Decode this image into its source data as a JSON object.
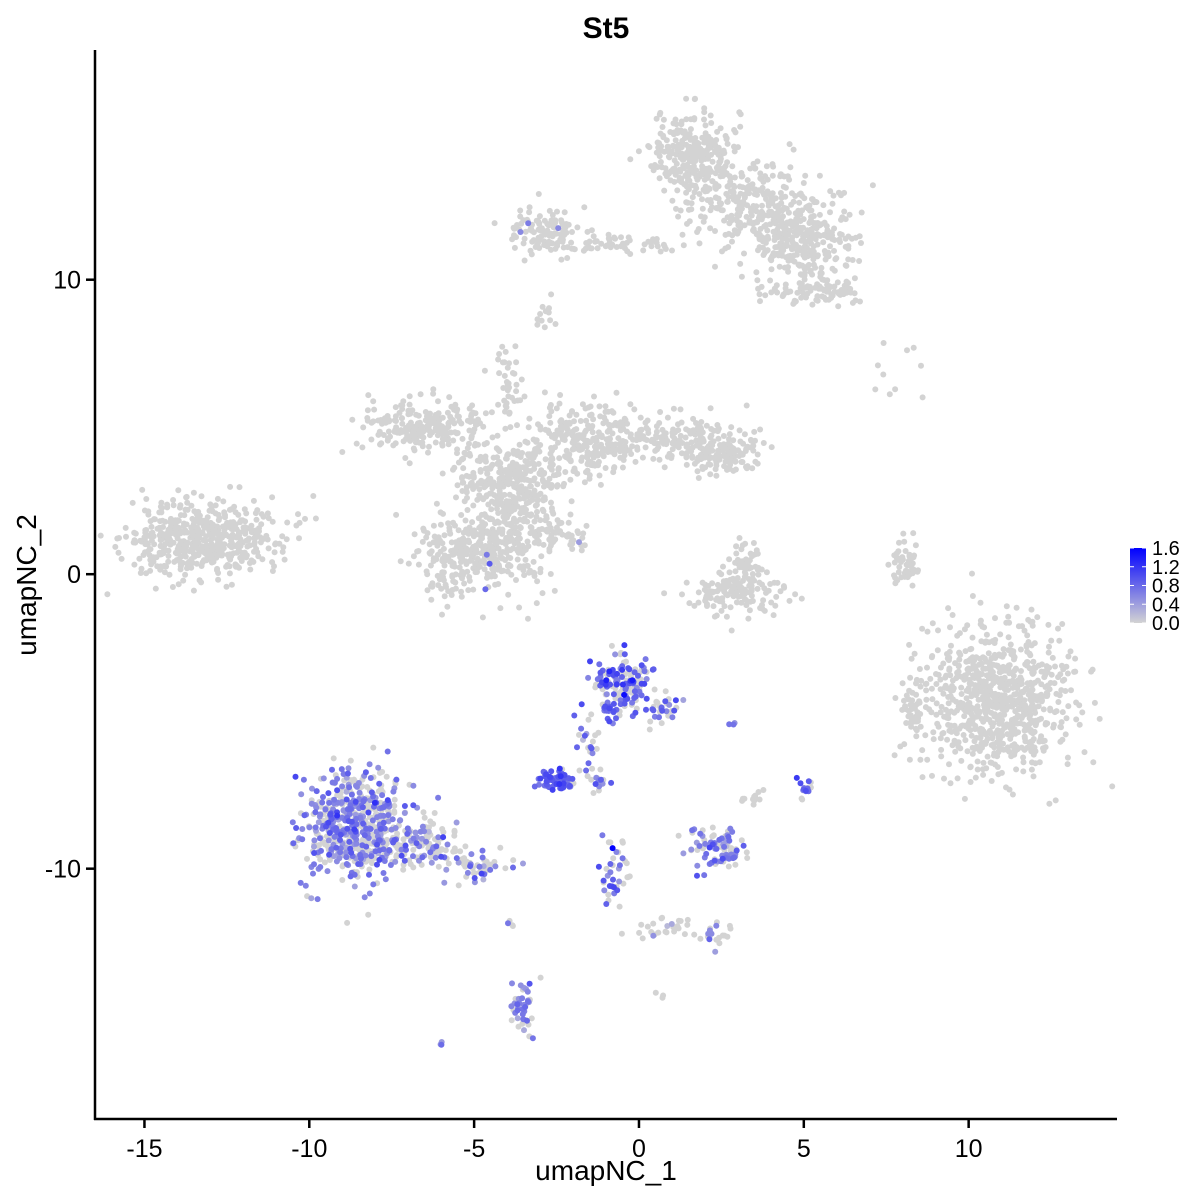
{
  "chart_data": {
    "type": "scatter",
    "title": "St5",
    "xlabel": "umapNC_1",
    "ylabel": "umapNC_2",
    "xlim": [
      -16.5,
      14.5
    ],
    "ylim": [
      -18.5,
      17.8
    ],
    "x_ticks": [
      -15,
      -10,
      -5,
      0,
      5,
      10
    ],
    "x_tick_labels": [
      "-15",
      "-10",
      "-5",
      "0",
      "5",
      "10"
    ],
    "y_ticks": [
      -10,
      0,
      10
    ],
    "y_tick_labels": [
      "-10",
      "0",
      "10"
    ],
    "grid": false,
    "legend": {
      "placement": "right",
      "title": "",
      "min": 0.0,
      "max": 1.6,
      "ticks": [
        0.0,
        0.4,
        0.8,
        1.2,
        1.6
      ],
      "tick_labels": [
        "0.0",
        "0.4",
        "0.8",
        "1.2",
        "1.6"
      ]
    },
    "colors": {
      "low": "#d3d3d3",
      "high": "#0000ff"
    },
    "clusters": [
      {
        "cx": 1.7,
        "cy": 14.2,
        "sx": 0.8,
        "sy": 0.9,
        "n": 300,
        "expr": 0,
        "frac": 0
      },
      {
        "cx": 3.5,
        "cy": 12.5,
        "sx": 1.3,
        "sy": 0.9,
        "n": 260,
        "expr": 0,
        "frac": 0
      },
      {
        "cx": 5.0,
        "cy": 11.3,
        "sx": 1.0,
        "sy": 0.8,
        "n": 260,
        "expr": 0,
        "frac": 0
      },
      {
        "cx": 5.3,
        "cy": 9.6,
        "sx": 0.9,
        "sy": 0.3,
        "n": 90,
        "expr": 0,
        "frac": 0
      },
      {
        "cx": -2.9,
        "cy": 11.6,
        "sx": 0.7,
        "sy": 0.5,
        "n": 110,
        "expr": 0.7,
        "frac": 0.04
      },
      {
        "cx": -0.5,
        "cy": 11.2,
        "sx": 1.3,
        "sy": 0.2,
        "n": 60,
        "expr": 0,
        "frac": 0
      },
      {
        "cx": -2.8,
        "cy": 8.8,
        "sx": 0.2,
        "sy": 0.5,
        "n": 12,
        "expr": 0,
        "frac": 0
      },
      {
        "cx": -13.2,
        "cy": 1.2,
        "sx": 1.4,
        "sy": 0.8,
        "n": 520,
        "expr": 0,
        "frac": 0
      },
      {
        "cx": -6.5,
        "cy": 5.0,
        "sx": 1.2,
        "sy": 0.6,
        "n": 220,
        "expr": 0,
        "frac": 0
      },
      {
        "cx": -3.8,
        "cy": 3.4,
        "sx": 1.0,
        "sy": 0.7,
        "n": 220,
        "expr": 0,
        "frac": 0
      },
      {
        "cx": -1.5,
        "cy": 4.6,
        "sx": 1.1,
        "sy": 0.8,
        "n": 240,
        "expr": 0,
        "frac": 0
      },
      {
        "cx": 1.5,
        "cy": 4.5,
        "sx": 1.3,
        "sy": 0.6,
        "n": 180,
        "expr": 0,
        "frac": 0
      },
      {
        "cx": 2.7,
        "cy": 4.0,
        "sx": 0.6,
        "sy": 0.4,
        "n": 80,
        "expr": 0,
        "frac": 0
      },
      {
        "cx": -4.0,
        "cy": 6.5,
        "sx": 0.25,
        "sy": 0.9,
        "n": 40,
        "expr": 0,
        "frac": 0
      },
      {
        "cx": -5.0,
        "cy": 0.6,
        "sx": 1.2,
        "sy": 0.9,
        "n": 280,
        "expr": 0.7,
        "frac": 0.01
      },
      {
        "cx": -3.8,
        "cy": 1.8,
        "sx": 0.9,
        "sy": 1.3,
        "n": 280,
        "expr": 0,
        "frac": 0
      },
      {
        "cx": -2.4,
        "cy": 1.2,
        "sx": 0.5,
        "sy": 0.3,
        "n": 30,
        "expr": 0.6,
        "frac": 0.05
      },
      {
        "cx": 2.9,
        "cy": -0.6,
        "sx": 0.9,
        "sy": 0.45,
        "n": 140,
        "expr": 0,
        "frac": 0
      },
      {
        "cx": 3.2,
        "cy": 0.5,
        "sx": 0.3,
        "sy": 0.5,
        "n": 40,
        "expr": 0,
        "frac": 0
      },
      {
        "cx": 8.1,
        "cy": 0.4,
        "sx": 0.25,
        "sy": 0.5,
        "n": 50,
        "expr": 0,
        "frac": 0
      },
      {
        "cx": 10.8,
        "cy": -4.3,
        "sx": 1.4,
        "sy": 1.6,
        "n": 800,
        "expr": 0,
        "frac": 0
      },
      {
        "cx": 8.3,
        "cy": -4.6,
        "sx": 0.2,
        "sy": 0.5,
        "n": 40,
        "expr": 0,
        "frac": 0
      },
      {
        "cx": 8.3,
        "cy": 6.5,
        "sx": 0.8,
        "sy": 1.1,
        "n": 10,
        "expr": 0,
        "frac": 0
      },
      {
        "cx": -0.5,
        "cy": -3.8,
        "sx": 0.55,
        "sy": 0.65,
        "n": 160,
        "expr": 0.85,
        "frac": 0.55
      },
      {
        "cx": 0.8,
        "cy": -4.6,
        "sx": 0.3,
        "sy": 0.4,
        "n": 30,
        "expr": 0.75,
        "frac": 0.4
      },
      {
        "cx": -1.5,
        "cy": -5.8,
        "sx": 0.25,
        "sy": 0.7,
        "n": 25,
        "expr": 0.7,
        "frac": 0.5
      },
      {
        "cx": -2.5,
        "cy": -7.0,
        "sx": 0.35,
        "sy": 0.2,
        "n": 60,
        "expr": 0.9,
        "frac": 0.85
      },
      {
        "cx": -1.1,
        "cy": -7.1,
        "sx": 0.3,
        "sy": 0.15,
        "n": 12,
        "expr": 0.7,
        "frac": 0.6
      },
      {
        "cx": -8.6,
        "cy": -8.6,
        "sx": 1.05,
        "sy": 1.1,
        "n": 620,
        "expr": 0.65,
        "frac": 0.5
      },
      {
        "cx": -6.5,
        "cy": -9.1,
        "sx": 0.7,
        "sy": 0.5,
        "n": 110,
        "expr": 0.65,
        "frac": 0.4
      },
      {
        "cx": -4.8,
        "cy": -10.0,
        "sx": 0.6,
        "sy": 0.3,
        "n": 45,
        "expr": 0.65,
        "frac": 0.4
      },
      {
        "cx": -0.7,
        "cy": -10.3,
        "sx": 0.25,
        "sy": 0.9,
        "n": 40,
        "expr": 0.7,
        "frac": 0.5
      },
      {
        "cx": 0.8,
        "cy": -12.0,
        "sx": 0.6,
        "sy": 0.25,
        "n": 25,
        "expr": 0.5,
        "frac": 0.2
      },
      {
        "cx": 2.3,
        "cy": -12.3,
        "sx": 0.3,
        "sy": 0.3,
        "n": 20,
        "expr": 0.6,
        "frac": 0.4
      },
      {
        "cx": 2.4,
        "cy": -9.3,
        "sx": 0.5,
        "sy": 0.45,
        "n": 90,
        "expr": 0.65,
        "frac": 0.5
      },
      {
        "cx": 3.4,
        "cy": -7.7,
        "sx": 0.25,
        "sy": 0.25,
        "n": 12,
        "expr": 0,
        "frac": 0
      },
      {
        "cx": 5.0,
        "cy": -7.3,
        "sx": 0.15,
        "sy": 0.25,
        "n": 15,
        "expr": 0.8,
        "frac": 0.7
      },
      {
        "cx": 2.8,
        "cy": -5.1,
        "sx": 0.1,
        "sy": 0.1,
        "n": 3,
        "expr": 0.6,
        "frac": 0.6
      },
      {
        "cx": -3.5,
        "cy": -14.6,
        "sx": 0.2,
        "sy": 0.7,
        "n": 45,
        "expr": 0.65,
        "frac": 0.6
      },
      {
        "cx": -3.9,
        "cy": -11.9,
        "sx": 0.1,
        "sy": 0.2,
        "n": 4,
        "expr": 0.6,
        "frac": 0.5
      },
      {
        "cx": -6.0,
        "cy": -16.0,
        "sx": 0.1,
        "sy": 0.1,
        "n": 3,
        "expr": 0.6,
        "frac": 1.0
      },
      {
        "cx": 0.7,
        "cy": -14.3,
        "sx": 0.1,
        "sy": 0.1,
        "n": 3,
        "expr": 0,
        "frac": 0
      }
    ],
    "highlight_points": [
      {
        "x": -0.8,
        "y": -9.3,
        "v": 1.6
      },
      {
        "x": -0.45,
        "y": -4.1,
        "v": 1.5
      },
      {
        "x": -0.2,
        "y": -3.6,
        "v": 1.4
      },
      {
        "x": -0.9,
        "y": -3.3,
        "v": 1.3
      },
      {
        "x": -2.4,
        "y": -6.6,
        "v": 1.2
      },
      {
        "x": 4.9,
        "y": -7.1,
        "v": 1.0
      }
    ]
  }
}
